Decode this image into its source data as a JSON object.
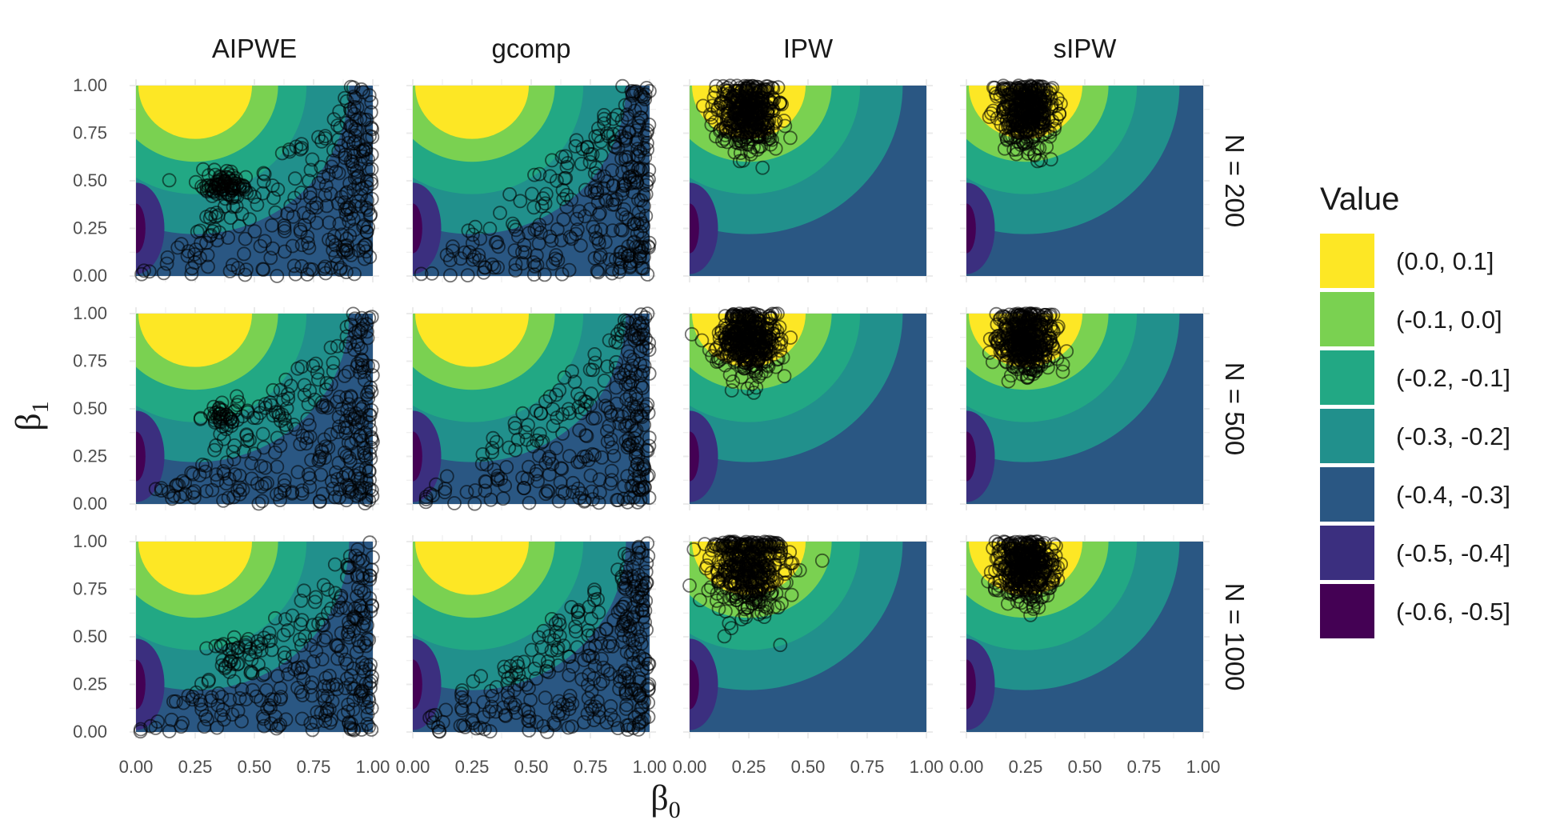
{
  "chart_data": {
    "type": "heatmap",
    "title": "",
    "xlabel": "β",
    "xlabel_sub": "0",
    "ylabel": "β",
    "ylabel_sub": "1",
    "xlim": [
      0,
      1
    ],
    "ylim": [
      0,
      1
    ],
    "x_ticks": [
      "0.00",
      "0.25",
      "0.50",
      "0.75",
      "1.00"
    ],
    "y_ticks": [
      "0.00",
      "0.25",
      "0.50",
      "0.75",
      "1.00"
    ],
    "columns": [
      "AIPWE",
      "gcomp",
      "IPW",
      "sIPW"
    ],
    "rows": [
      "N = 200",
      "N = 500",
      "N = 1000"
    ],
    "grid": true,
    "legend": {
      "title": "Value",
      "position": "right",
      "items": [
        {
          "label": "(0.0, 0.1]",
          "color": "#FDE725"
        },
        {
          "label": "(-0.1, 0.0]",
          "color": "#7AD151"
        },
        {
          "label": "(-0.2, -0.1]",
          "color": "#22A884"
        },
        {
          "label": "(-0.3, -0.2]",
          "color": "#21908C"
        },
        {
          "label": "(-0.4, -0.3]",
          "color": "#2A5783"
        },
        {
          "label": "(-0.5, -0.4]",
          "color": "#3B2F7F"
        },
        {
          "label": "(-0.6, -0.5]",
          "color": "#440154"
        }
      ]
    },
    "contour_surface": {
      "peak": [
        0.25,
        1.0
      ],
      "min_region_center": [
        0.0,
        0.25
      ],
      "note": "filled contours of value over (β0, β1); identical surface in all panels"
    },
    "points": {
      "marker": "open circle",
      "color": "#000000",
      "AIPWE": {
        "pattern": "lower-right triangle (β1 < β0) plus cluster near (0.38, 0.48)"
      },
      "gcomp": {
        "pattern": "lower-right triangle (β1 < β0)"
      },
      "IPW": {
        "pattern": "dense cluster centered near (0.25, 0.85)"
      },
      "sIPW": {
        "pattern": "dense cluster centered near (0.25, 0.85)"
      }
    }
  }
}
